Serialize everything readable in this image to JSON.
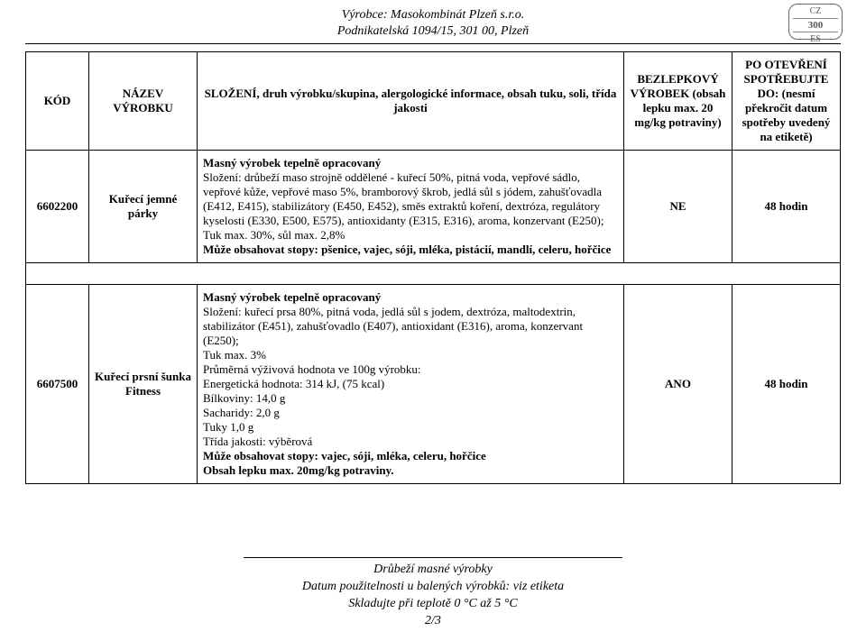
{
  "header": {
    "line1": "Výrobce: Masokombinát Plzeň s.r.o.",
    "line2": "Podnikatelská 1094/15, 301 00, Plzeň"
  },
  "stamp": {
    "top": "CZ",
    "mid": "300",
    "bot": "ES"
  },
  "columns": {
    "kod": "KÓD",
    "name": "NÁZEV VÝROBKU",
    "comp": "SLOŽENÍ, druh výrobku/skupina, alergologické informace, obsah tuku, soli, třída jakosti",
    "gf": "BEZLEPKOVÝ VÝROBEK (obsah lepku max. 20 mg/kg potraviny)",
    "after": "PO OTEVŘENÍ SPOTŘEBUJTE DO: (nesmí překročit datum spotřeby uvedený na etiketě)"
  },
  "rows": [
    {
      "kod": "6602200",
      "name": "Kuřecí jemné párky",
      "comp_title": "Masný výrobek tepelně opracovaný",
      "comp_body": "Složení: drůbeží maso strojně oddělené - kuřecí 50%, pitná voda, vepřové sádlo, vepřové kůže, vepřové maso 5%, bramborový škrob, jedlá sůl s jódem, zahušťovadla (E412, E415), stabilizátory (E450, E452), směs extraktů koření, dextróza, regulátory kyselosti (E330, E500, E575), antioxidanty (E315, E316), aroma, konzervant (E250);\nTuk max. 30%, sůl max. 2,8%",
      "comp_trace": "Může obsahovat stopy: pšenice, vajec, sóji, mléka, pistácií, mandlí, celeru, hořčice",
      "gf": "NE",
      "after": "48 hodin"
    },
    {
      "kod": "6607500",
      "name": "Kuřecí prsní šunka Fitness",
      "comp_title": "Masný výrobek tepelně opracovaný",
      "comp_body": "Složení: kuřecí prsa 80%, pitná voda, jedlá sůl s jodem, dextróza, maltodextrin, stabilizátor (E451), zahušťovadlo (E407), antioxidant (E316), aroma, konzervant (E250);\nTuk max. 3%\nPrůměrná výživová hodnota ve 100g výrobku:\nEnergetická hodnota: 314 kJ, (75 kcal)\nBílkoviny: 14,0 g\nSacharidy: 2,0 g\nTuky 1,0 g\nTřída jakosti: výběrová",
      "comp_trace": "Může obsahovat stopy: vajec, sóji, mléka, celeru, hořčice\nObsah lepku max. 20mg/kg potraviny.",
      "gf": "ANO",
      "after": "48 hodin"
    }
  ],
  "footer": {
    "line1": "Drůbeží masné výrobky",
    "line2": "Datum použitelnosti u balených výrobků: viz etiketa",
    "line3": "Skladujte při teplotě 0 °C až 5 °C",
    "page": "2/3"
  }
}
